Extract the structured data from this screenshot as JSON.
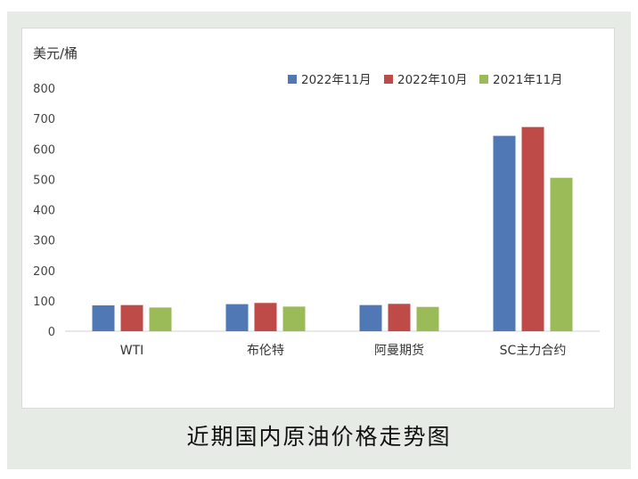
{
  "caption": "近期国内原油价格走势图",
  "chart_data": {
    "type": "bar",
    "title": "",
    "unit_label": "美元/桶",
    "xlabel": "",
    "ylabel": "美元/桶",
    "categories": [
      "WTI",
      "布伦特",
      "阿曼期货",
      "SC主力合约"
    ],
    "series": [
      {
        "name": "2022年11月",
        "color": "#4f78b5",
        "values": [
          85,
          89,
          86,
          643
        ]
      },
      {
        "name": "2022年10月",
        "color": "#be4b48",
        "values": [
          86,
          93,
          90,
          672
        ]
      },
      {
        "name": "2021年11月",
        "color": "#9bbb59",
        "values": [
          78,
          81,
          80,
          505
        ]
      }
    ],
    "ylim": [
      0,
      800
    ],
    "yticks": [
      "0",
      "100",
      "200",
      "300",
      "400",
      "500",
      "600",
      "700",
      "800"
    ],
    "grid": false,
    "legend_position": "top-right"
  }
}
